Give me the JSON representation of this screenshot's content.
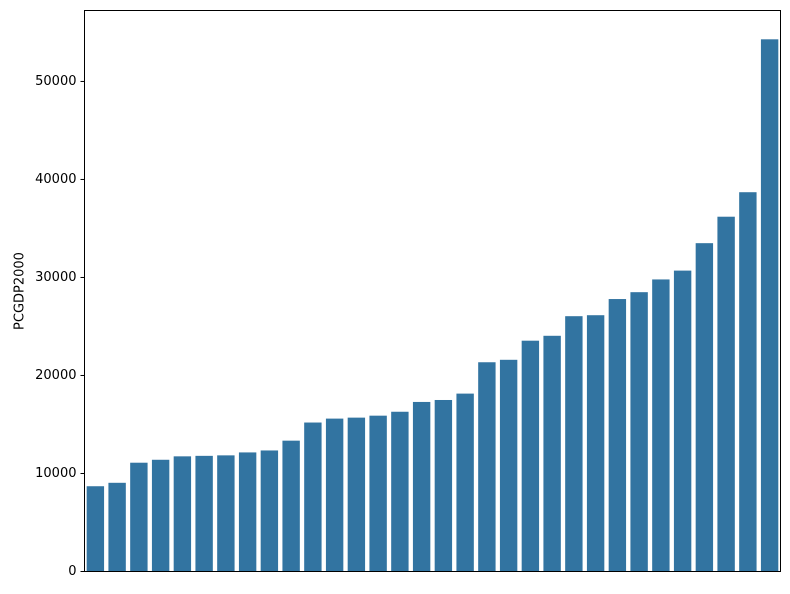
{
  "chart_data": {
    "type": "bar",
    "title": "",
    "xlabel": "",
    "ylabel": "PCGDP2000",
    "ylim": [
      0,
      57240
    ],
    "yticks": [
      0,
      10000,
      20000,
      30000,
      40000,
      50000
    ],
    "ytick_labels": [
      "0",
      "10000",
      "20000",
      "30000",
      "40000",
      "50000"
    ],
    "categories_visible": false,
    "grid": false,
    "legend": "none",
    "bar_color": "#3274a1",
    "values": [
      8700,
      9050,
      11100,
      11400,
      11750,
      11800,
      11850,
      12150,
      12350,
      13350,
      15200,
      15600,
      15700,
      15900,
      16300,
      17300,
      17500,
      18150,
      21350,
      21600,
      23550,
      24050,
      26050,
      26150,
      27800,
      28500,
      29800,
      30700,
      33500,
      36200,
      38700,
      54300
    ]
  }
}
